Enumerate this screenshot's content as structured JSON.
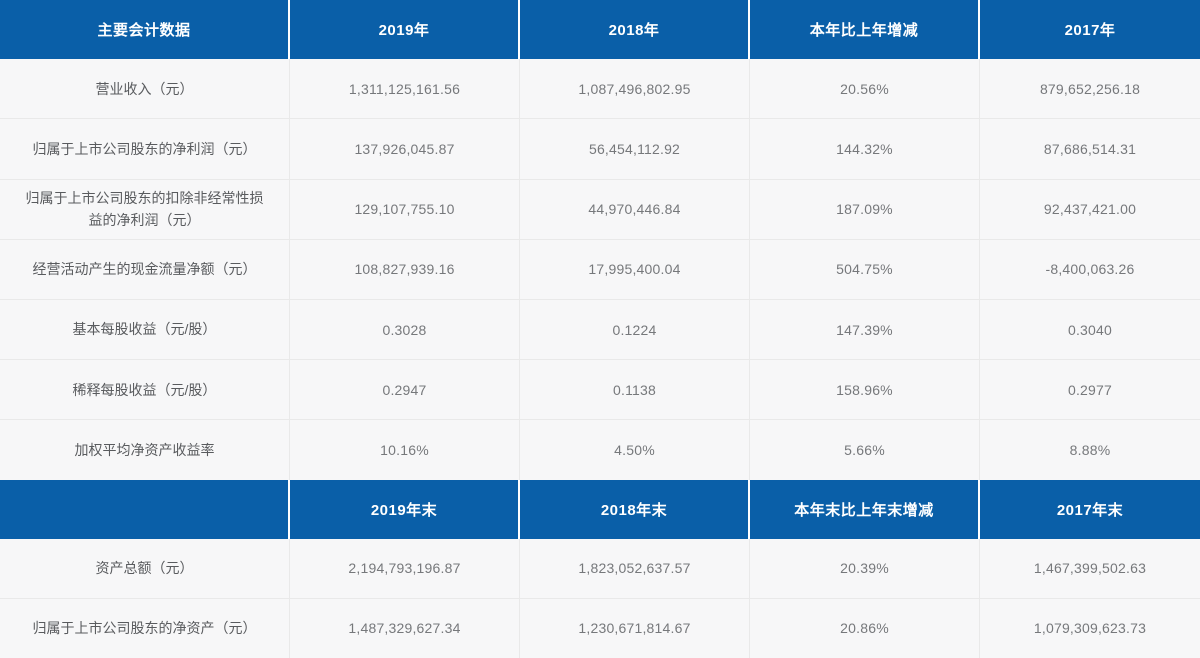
{
  "colors": {
    "header_background": "#0a5fa8",
    "header_text": "#ffffff",
    "body_background": "#f7f7f8",
    "divider": "#e9e9e9",
    "label_text": "#595b5e",
    "value_text": "#76787b"
  },
  "table": {
    "header1": [
      "主要会计数据",
      "2019年",
      "2018年",
      "本年比上年增减",
      "2017年"
    ],
    "rows1": [
      [
        "营业收入（元）",
        "1,311,125,161.56",
        "1,087,496,802.95",
        "20.56%",
        "879,652,256.18"
      ],
      [
        "归属于上市公司股东的净利润（元）",
        "137,926,045.87",
        "56,454,112.92",
        "144.32%",
        "87,686,514.31"
      ],
      [
        "归属于上市公司股东的扣除非经常性损益的净利润（元）",
        "129,107,755.10",
        "44,970,446.84",
        "187.09%",
        "92,437,421.00"
      ],
      [
        "经营活动产生的现金流量净额（元）",
        "108,827,939.16",
        "17,995,400.04",
        "504.75%",
        "-8,400,063.26"
      ],
      [
        "基本每股收益（元/股）",
        "0.3028",
        "0.1224",
        "147.39%",
        "0.3040"
      ],
      [
        "稀释每股收益（元/股）",
        "0.2947",
        "0.1138",
        "158.96%",
        "0.2977"
      ],
      [
        "加权平均净资产收益率",
        "10.16%",
        "4.50%",
        "5.66%",
        "8.88%"
      ]
    ],
    "header2": [
      "",
      "2019年末",
      "2018年末",
      "本年末比上年末增减",
      "2017年末"
    ],
    "rows2": [
      [
        "资产总额（元）",
        "2,194,793,196.87",
        "1,823,052,637.57",
        "20.39%",
        "1,467,399,502.63"
      ],
      [
        "归属于上市公司股东的净资产（元）",
        "1,487,329,627.34",
        "1,230,671,814.67",
        "20.86%",
        "1,079,309,623.73"
      ]
    ]
  }
}
